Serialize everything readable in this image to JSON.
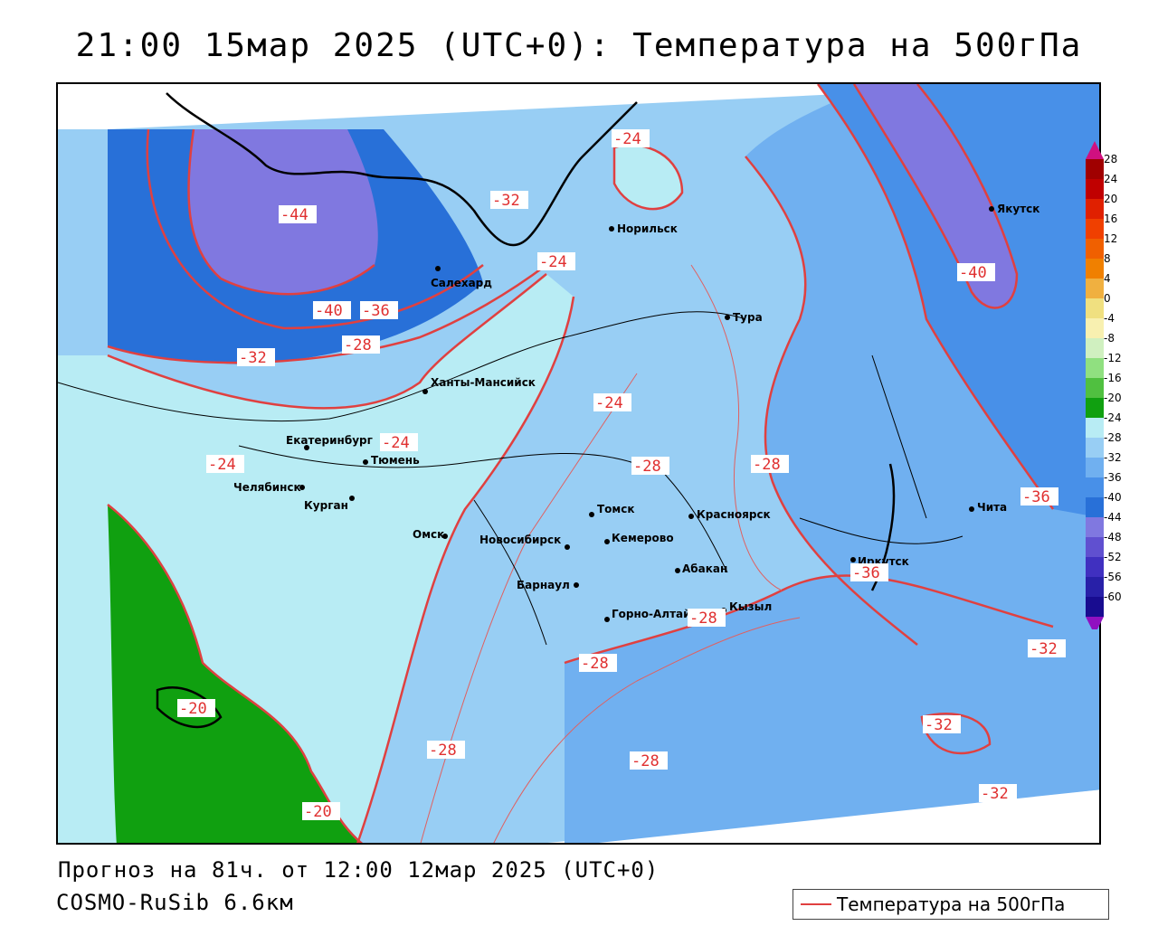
{
  "title": "21:00 15мар 2025 (UTC+0): Температура на 500гПа",
  "footer": {
    "forecast": "Прогноз на 81ч. от 12:00 12мар 2025 (UTC+0)",
    "model": "COSMO-RuSib 6.6км"
  },
  "legend": {
    "line_label": "Температура на 500гПа",
    "line_color": "#e04040"
  },
  "colorbar": {
    "ticks": [
      "28",
      "24",
      "20",
      "16",
      "12",
      "8",
      "4",
      "0",
      "-4",
      "-8",
      "-12",
      "-16",
      "-20",
      "-24",
      "-28",
      "-32",
      "-36",
      "-40",
      "-44",
      "-48",
      "-52",
      "-56",
      "-60"
    ],
    "colors": [
      "#a00000",
      "#c00000",
      "#e02000",
      "#f04000",
      "#f06000",
      "#f08000",
      "#f0b040",
      "#f0e080",
      "#f8f0b0",
      "#d0f0c0",
      "#90e080",
      "#50c040",
      "#10a010",
      "#b8ecf4",
      "#98cef4",
      "#70b0f0",
      "#4890e8",
      "#2870d8",
      "#8078e0",
      "#6050d0",
      "#4030c0",
      "#2820a8",
      "#180c90"
    ]
  },
  "cities": [
    {
      "name": "Норильск"
    },
    {
      "name": "Якутск"
    },
    {
      "name": "Салехард"
    },
    {
      "name": "Тура"
    },
    {
      "name": "Ханты-Мансийск"
    },
    {
      "name": "Екатеринбург"
    },
    {
      "name": "Тюмень"
    },
    {
      "name": "Челябинск"
    },
    {
      "name": "Курган"
    },
    {
      "name": "Омск"
    },
    {
      "name": "Томск"
    },
    {
      "name": "Красноярск"
    },
    {
      "name": "Новосибирск"
    },
    {
      "name": "Кемерово"
    },
    {
      "name": "Абакан"
    },
    {
      "name": "Барнаул"
    },
    {
      "name": "Горно-Алтайск"
    },
    {
      "name": "Кызыл"
    },
    {
      "name": "Иркутск"
    },
    {
      "name": "Чита"
    }
  ],
  "contour_labels": [
    "-24",
    "-44",
    "-32",
    "-24",
    "-40",
    "-36",
    "-28",
    "-32",
    "-24",
    "-24",
    "-24",
    "-28",
    "-28",
    "-36",
    "-32",
    "-32",
    "-32",
    "-28",
    "-28",
    "-28",
    "-28",
    "-20",
    "-20",
    "-40",
    "-36"
  ]
}
